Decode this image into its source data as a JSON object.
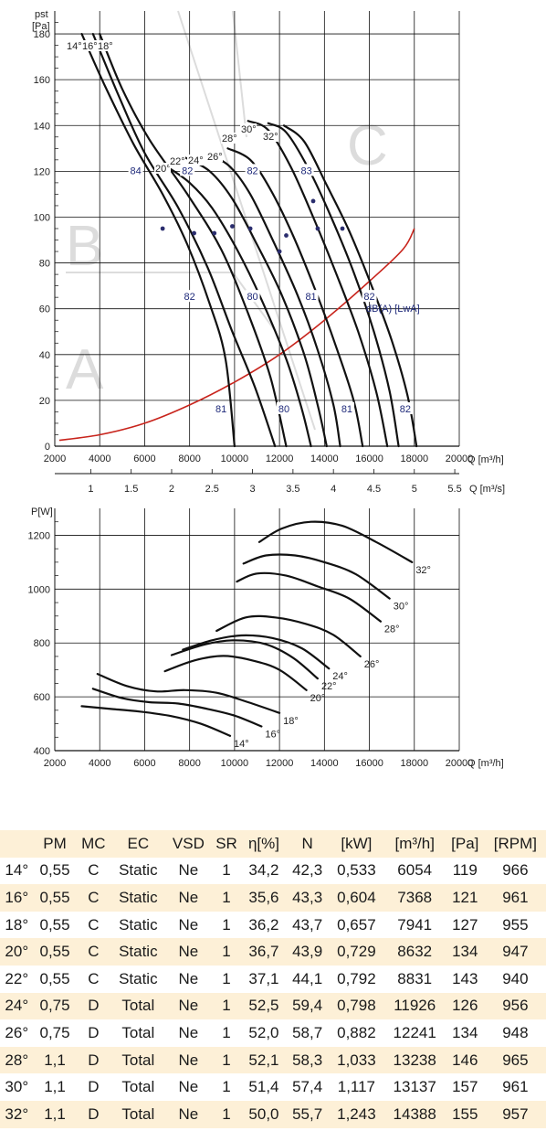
{
  "chart_data": [
    {
      "type": "line",
      "ylabel": "pst",
      "yunit": "[Pa]",
      "xlabel": "Q [m³/h]",
      "x2label": "Q [m³/s]",
      "xlim": [
        2000,
        20000
      ],
      "ylim": [
        0,
        190
      ],
      "xticks": [
        2000,
        4000,
        6000,
        8000,
        10000,
        12000,
        14000,
        16000,
        18000,
        20000
      ],
      "yticks": [
        0,
        20,
        40,
        60,
        80,
        100,
        120,
        140,
        160,
        180
      ],
      "x2ticks": [
        1,
        1.5,
        2,
        2.5,
        3,
        3.5,
        4,
        4.5,
        5,
        5.5
      ],
      "x2tick_labels": [
        "1",
        "1.5",
        "2",
        "2.5",
        "3",
        "3.5",
        "4",
        "4.5",
        "5",
        "5.5"
      ],
      "watermark_letters": [
        "A",
        "B",
        "C"
      ],
      "series": [
        {
          "name": "14°",
          "points": [
            [
              3200,
              180
            ],
            [
              4200,
              158
            ],
            [
              5500,
              132
            ],
            [
              6800,
              110
            ],
            [
              7900,
              88
            ],
            [
              8900,
              62
            ],
            [
              9600,
              38
            ],
            [
              10000,
              0
            ]
          ]
        },
        {
          "name": "16°",
          "points": [
            [
              3700,
              180
            ],
            [
              4800,
              154
            ],
            [
              6000,
              128
            ],
            [
              7500,
              104
            ],
            [
              8800,
              78
            ],
            [
              9900,
              50
            ],
            [
              10900,
              26
            ],
            [
              11800,
              0
            ]
          ]
        },
        {
          "name": "18°",
          "points": [
            [
              4000,
              180
            ],
            [
              5000,
              156
            ],
            [
              6200,
              134
            ],
            [
              7900,
              110
            ],
            [
              9400,
              86
            ],
            [
              10600,
              58
            ],
            [
              11600,
              30
            ],
            [
              12300,
              0
            ]
          ]
        },
        {
          "name": "20°",
          "points": [
            [
              7000,
              122
            ],
            [
              8000,
              115
            ],
            [
              9000,
              104
            ],
            [
              10100,
              86
            ],
            [
              11200,
              64
            ],
            [
              12300,
              38
            ],
            [
              13000,
              16
            ],
            [
              13400,
              0
            ]
          ]
        },
        {
          "name": "22°",
          "points": [
            [
              7800,
              126
            ],
            [
              8900,
              120
            ],
            [
              9900,
              108
            ],
            [
              11000,
              88
            ],
            [
              12100,
              66
            ],
            [
              13100,
              40
            ],
            [
              13700,
              18
            ],
            [
              14100,
              0
            ]
          ]
        },
        {
          "name": "24°",
          "points": [
            [
              8800,
              128
            ],
            [
              9800,
              122
            ],
            [
              10700,
              110
            ],
            [
              11700,
              90
            ],
            [
              12800,
              66
            ],
            [
              13700,
              42
            ],
            [
              14400,
              18
            ],
            [
              14700,
              0
            ]
          ]
        },
        {
          "name": "26°",
          "points": [
            [
              9700,
              130
            ],
            [
              10700,
              125
            ],
            [
              11600,
              112
            ],
            [
              12600,
              92
            ],
            [
              13600,
              68
            ],
            [
              14500,
              44
            ],
            [
              15300,
              20
            ],
            [
              15700,
              0
            ]
          ]
        },
        {
          "name": "28°",
          "points": [
            [
              10600,
              142
            ],
            [
              11500,
              138
            ],
            [
              12500,
              122
            ],
            [
              13500,
              100
            ],
            [
              14500,
              76
            ],
            [
              15500,
              50
            ],
            [
              16300,
              24
            ],
            [
              16800,
              0
            ]
          ]
        },
        {
          "name": "30°",
          "points": [
            [
              11500,
              141
            ],
            [
              12300,
              137
            ],
            [
              13300,
              121
            ],
            [
              14300,
              100
            ],
            [
              15300,
              76
            ],
            [
              16200,
              50
            ],
            [
              16900,
              24
            ],
            [
              17300,
              0
            ]
          ]
        },
        {
          "name": "32°",
          "points": [
            [
              12200,
              140
            ],
            [
              13100,
              133
            ],
            [
              14100,
              114
            ],
            [
              15100,
              94
            ],
            [
              16100,
              70
            ],
            [
              17000,
              46
            ],
            [
              17700,
              22
            ],
            [
              18100,
              0
            ]
          ]
        }
      ],
      "system_curve": {
        "points": [
          [
            2200,
            2.6
          ],
          [
            4000,
            5
          ],
          [
            6000,
            10
          ],
          [
            8000,
            18
          ],
          [
            10000,
            28
          ],
          [
            12000,
            40
          ],
          [
            14000,
            55
          ],
          [
            16000,
            72
          ],
          [
            17500,
            86
          ],
          [
            18000,
            95
          ]
        ]
      },
      "operating_points": [
        [
          6800,
          95
        ],
        [
          8200,
          93
        ],
        [
          9100,
          93
        ],
        [
          9900,
          96
        ],
        [
          10700,
          95
        ],
        [
          12000,
          85
        ],
        [
          12300,
          92
        ],
        [
          13500,
          107
        ],
        [
          13700,
          95
        ],
        [
          14800,
          95
        ]
      ],
      "curve_labels": [
        "14°",
        "16°",
        "18°",
        "20°",
        "22°",
        "24°",
        "26°",
        "28°",
        "30°",
        "32°"
      ],
      "sound_labels": [
        {
          "text": "84",
          "x": 5600,
          "y": 120
        },
        {
          "text": "82",
          "x": 7900,
          "y": 120
        },
        {
          "text": "82",
          "x": 10800,
          "y": 120
        },
        {
          "text": "83",
          "x": 13200,
          "y": 120
        },
        {
          "text": "82",
          "x": 8000,
          "y": 65
        },
        {
          "text": "80",
          "x": 10800,
          "y": 65
        },
        {
          "text": "81",
          "x": 13400,
          "y": 65
        },
        {
          "text": "82",
          "x": 16000,
          "y": 65
        },
        {
          "text": "81",
          "x": 9400,
          "y": 16
        },
        {
          "text": "80",
          "x": 12200,
          "y": 16
        },
        {
          "text": "81",
          "x": 15000,
          "y": 16
        },
        {
          "text": "82",
          "x": 17600,
          "y": 16
        }
      ],
      "sound_unit": "dB(A) [LwA]"
    },
    {
      "type": "line",
      "ylabel": "P[W]",
      "xlabel": "Q [m³/h]",
      "xlim": [
        2000,
        20000
      ],
      "ylim": [
        400,
        1300
      ],
      "xticks": [
        2000,
        4000,
        6000,
        8000,
        10000,
        12000,
        14000,
        16000,
        18000,
        20000
      ],
      "yticks": [
        400,
        600,
        800,
        1000,
        1200
      ],
      "series": [
        {
          "name": "14°",
          "points": [
            [
              3200,
              565
            ],
            [
              4500,
              555
            ],
            [
              5800,
              545
            ],
            [
              7200,
              528
            ],
            [
              8500,
              500
            ],
            [
              9800,
              455
            ]
          ]
        },
        {
          "name": "16°",
          "points": [
            [
              3700,
              630
            ],
            [
              5000,
              595
            ],
            [
              6200,
              580
            ],
            [
              7500,
              575
            ],
            [
              8800,
              555
            ],
            [
              10000,
              530
            ],
            [
              11200,
              490
            ]
          ]
        },
        {
          "name": "18°",
          "points": [
            [
              3900,
              685
            ],
            [
              5200,
              640
            ],
            [
              6500,
              620
            ],
            [
              7800,
              625
            ],
            [
              9200,
              615
            ],
            [
              10600,
              580
            ],
            [
              12000,
              540
            ]
          ]
        },
        {
          "name": "20°",
          "points": [
            [
              6900,
              695
            ],
            [
              8200,
              735
            ],
            [
              9500,
              752
            ],
            [
              10800,
              735
            ],
            [
              12000,
              700
            ],
            [
              13200,
              625
            ]
          ]
        },
        {
          "name": "22°",
          "points": [
            [
              7200,
              755
            ],
            [
              8700,
              795
            ],
            [
              10000,
              810
            ],
            [
              11400,
              795
            ],
            [
              12600,
              745
            ],
            [
              13700,
              668
            ]
          ]
        },
        {
          "name": "24°",
          "points": [
            [
              7700,
              775
            ],
            [
              9000,
              810
            ],
            [
              10300,
              828
            ],
            [
              11700,
              818
            ],
            [
              13000,
              780
            ],
            [
              14200,
              705
            ]
          ]
        },
        {
          "name": "26°",
          "points": [
            [
              9200,
              845
            ],
            [
              10500,
              895
            ],
            [
              11800,
              895
            ],
            [
              13200,
              870
            ],
            [
              14400,
              830
            ],
            [
              15600,
              750
            ]
          ]
        },
        {
          "name": "28°",
          "points": [
            [
              10100,
              1028
            ],
            [
              11000,
              1058
            ],
            [
              12300,
              1050
            ],
            [
              13700,
              1010
            ],
            [
              15100,
              965
            ],
            [
              16500,
              880
            ]
          ]
        },
        {
          "name": "30°",
          "points": [
            [
              10400,
              1095
            ],
            [
              11400,
              1125
            ],
            [
              12700,
              1125
            ],
            [
              14000,
              1100
            ],
            [
              15400,
              1055
            ],
            [
              16900,
              965
            ]
          ]
        },
        {
          "name": "32°",
          "points": [
            [
              11100,
              1175
            ],
            [
              12100,
              1225
            ],
            [
              13400,
              1250
            ],
            [
              14800,
              1235
            ],
            [
              16300,
              1175
            ],
            [
              17900,
              1100
            ]
          ]
        }
      ]
    }
  ],
  "table": {
    "headers": [
      "",
      "PM",
      "MC",
      "EC",
      "VSD",
      "SR",
      "η[%]",
      "N",
      "[kW]",
      "[m³/h]",
      "[Pa]",
      "[RPM]"
    ],
    "rows": [
      [
        "14°",
        "0,55",
        "C",
        "Static",
        "Ne",
        "1",
        "34,2",
        "42,3",
        "0,533",
        "6054",
        "119",
        "966"
      ],
      [
        "16°",
        "0,55",
        "C",
        "Static",
        "Ne",
        "1",
        "35,6",
        "43,3",
        "0,604",
        "7368",
        "121",
        "961"
      ],
      [
        "18°",
        "0,55",
        "C",
        "Static",
        "Ne",
        "1",
        "36,2",
        "43,7",
        "0,657",
        "7941",
        "127",
        "955"
      ],
      [
        "20°",
        "0,55",
        "C",
        "Static",
        "Ne",
        "1",
        "36,7",
        "43,9",
        "0,729",
        "8632",
        "134",
        "947"
      ],
      [
        "22°",
        "0,55",
        "C",
        "Static",
        "Ne",
        "1",
        "37,1",
        "44,1",
        "0,792",
        "8831",
        "143",
        "940"
      ],
      [
        "24°",
        "0,75",
        "D",
        "Total",
        "Ne",
        "1",
        "52,5",
        "59,4",
        "0,798",
        "11926",
        "126",
        "956"
      ],
      [
        "26°",
        "0,75",
        "D",
        "Total",
        "Ne",
        "1",
        "52,0",
        "58,7",
        "0,882",
        "12241",
        "134",
        "948"
      ],
      [
        "28°",
        "1,1",
        "D",
        "Total",
        "Ne",
        "1",
        "52,1",
        "58,3",
        "1,033",
        "13238",
        "146",
        "965"
      ],
      [
        "30°",
        "1,1",
        "D",
        "Total",
        "Ne",
        "1",
        "51,4",
        "57,4",
        "1,117",
        "13137",
        "157",
        "961"
      ],
      [
        "32°",
        "1,1",
        "D",
        "Total",
        "Ne",
        "1",
        "50,0",
        "55,7",
        "1,243",
        "14388",
        "155",
        "957"
      ]
    ]
  },
  "colors": {
    "curve": "#111111",
    "system_curve": "#c8241c",
    "sound_label": "#1f2a7a",
    "grid": "#111111",
    "table_stripe": "#fdf0d7",
    "watermark": "#dcdcdc"
  }
}
